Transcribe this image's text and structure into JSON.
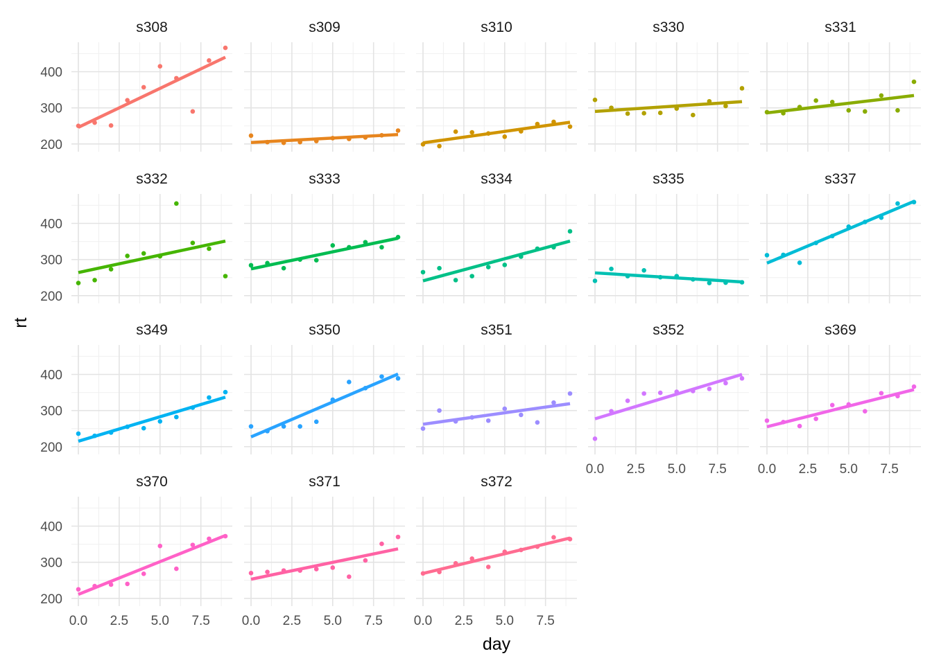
{
  "chart_data": {
    "type": "scatter",
    "title": "",
    "xlabel": "day",
    "ylabel": "rt",
    "xlim": [
      0,
      9
    ],
    "ylim": [
      190,
      470
    ],
    "xticks": [
      "0.0",
      "2.5",
      "5.0",
      "7.5"
    ],
    "yticks": [
      "200",
      "300",
      "400"
    ],
    "grid": true,
    "legend": "none",
    "trend_lines": "linear fit per panel",
    "facets": [
      {
        "name": "s308",
        "color": "#F8766D",
        "x": [
          0,
          1,
          2,
          3,
          4,
          5,
          6,
          7,
          8,
          9
        ],
        "y": [
          250,
          259,
          251,
          321,
          357,
          415,
          382,
          290,
          431,
          466
        ],
        "fit": [
          246,
          440
        ]
      },
      {
        "name": "s309",
        "color": "#E7851E",
        "x": [
          0,
          1,
          2,
          3,
          4,
          5,
          6,
          7,
          8,
          9
        ],
        "y": [
          223,
          205,
          203,
          205,
          208,
          216,
          214,
          218,
          224,
          237
        ],
        "fit": [
          204,
          226
        ]
      },
      {
        "name": "s310",
        "color": "#D09400",
        "x": [
          0,
          1,
          2,
          3,
          4,
          5,
          6,
          7,
          8,
          9
        ],
        "y": [
          199,
          194,
          234,
          232,
          229,
          220,
          235,
          255,
          261,
          248
        ],
        "fit": [
          203,
          260
        ]
      },
      {
        "name": "s330",
        "color": "#B2A100",
        "x": [
          0,
          1,
          2,
          3,
          4,
          5,
          6,
          7,
          8,
          9
        ],
        "y": [
          322,
          300,
          284,
          285,
          286,
          298,
          280,
          318,
          305,
          354
        ],
        "fit": [
          290,
          317
        ]
      },
      {
        "name": "s331",
        "color": "#89AC00",
        "x": [
          0,
          1,
          2,
          3,
          4,
          5,
          6,
          7,
          8,
          9
        ],
        "y": [
          288,
          285,
          302,
          320,
          316,
          293,
          290,
          334,
          293,
          372
        ],
        "fit": [
          286,
          334
        ]
      },
      {
        "name": "s332",
        "color": "#45B500",
        "x": [
          0,
          1,
          2,
          3,
          4,
          5,
          6,
          7,
          8,
          9
        ],
        "y": [
          235,
          243,
          273,
          310,
          317,
          309,
          455,
          346,
          330,
          254
        ],
        "fit": [
          264,
          351
        ]
      },
      {
        "name": "s333",
        "color": "#00BC51",
        "x": [
          0,
          1,
          2,
          3,
          4,
          5,
          6,
          7,
          8,
          9
        ],
        "y": [
          284,
          290,
          276,
          300,
          298,
          339,
          334,
          348,
          334,
          362
        ],
        "fit": [
          274,
          359
        ]
      },
      {
        "name": "s334",
        "color": "#00C087",
        "x": [
          0,
          1,
          2,
          3,
          4,
          5,
          6,
          7,
          8,
          9
        ],
        "y": [
          265,
          276,
          243,
          254,
          279,
          285,
          308,
          330,
          334,
          378
        ],
        "fit": [
          241,
          351
        ]
      },
      {
        "name": "s335",
        "color": "#00C0B2",
        "x": [
          0,
          1,
          2,
          3,
          4,
          5,
          6,
          7,
          8,
          9
        ],
        "y": [
          241,
          274,
          254,
          270,
          251,
          254,
          245,
          235,
          236,
          237
        ],
        "fit": [
          263,
          238
        ]
      },
      {
        "name": "s337",
        "color": "#00BCD6",
        "x": [
          0,
          1,
          2,
          3,
          4,
          5,
          6,
          7,
          8,
          9
        ],
        "y": [
          312,
          313,
          291,
          346,
          365,
          391,
          404,
          416,
          455,
          459
        ],
        "fit": [
          290,
          461
        ]
      },
      {
        "name": "s349",
        "color": "#00B3F2",
        "x": [
          0,
          1,
          2,
          3,
          4,
          5,
          6,
          7,
          8,
          9
        ],
        "y": [
          236,
          230,
          239,
          255,
          251,
          270,
          282,
          308,
          336,
          351
        ],
        "fit": [
          215,
          337
        ]
      },
      {
        "name": "s350",
        "color": "#29A3FF",
        "x": [
          0,
          1,
          2,
          3,
          4,
          5,
          6,
          7,
          8,
          9
        ],
        "y": [
          256,
          243,
          256,
          256,
          269,
          330,
          379,
          362,
          394,
          389
        ],
        "fit": [
          227,
          401
        ]
      },
      {
        "name": "s351",
        "color": "#9C8DFF",
        "x": [
          0,
          1,
          2,
          3,
          4,
          5,
          6,
          7,
          8,
          9
        ],
        "y": [
          250,
          300,
          270,
          281,
          272,
          305,
          288,
          267,
          322,
          347
        ],
        "fit": [
          262,
          319
        ]
      },
      {
        "name": "s352",
        "color": "#D277FF",
        "x": [
          0,
          1,
          2,
          3,
          4,
          5,
          6,
          7,
          8,
          9
        ],
        "y": [
          222,
          298,
          327,
          347,
          349,
          352,
          354,
          360,
          376,
          389
        ],
        "fit": [
          277,
          400
        ]
      },
      {
        "name": "s369",
        "color": "#F166E8",
        "x": [
          0,
          1,
          2,
          3,
          4,
          5,
          6,
          7,
          8,
          9
        ],
        "y": [
          272,
          268,
          257,
          277,
          315,
          317,
          298,
          348,
          340,
          366
        ],
        "fit": [
          255,
          358
        ]
      },
      {
        "name": "s370",
        "color": "#FF61C7",
        "x": [
          0,
          1,
          2,
          3,
          4,
          5,
          6,
          7,
          8,
          9
        ],
        "y": [
          225,
          234,
          238,
          240,
          268,
          345,
          282,
          348,
          365,
          372
        ],
        "fit": [
          211,
          374
        ]
      },
      {
        "name": "s371",
        "color": "#FF62A4",
        "x": [
          0,
          1,
          2,
          3,
          4,
          5,
          6,
          7,
          8,
          9
        ],
        "y": [
          270,
          273,
          277,
          277,
          281,
          285,
          260,
          305,
          351,
          370
        ],
        "fit": [
          253,
          337
        ]
      },
      {
        "name": "s372",
        "color": "#FF6C91",
        "x": [
          0,
          1,
          2,
          3,
          4,
          5,
          6,
          7,
          8,
          9
        ],
        "y": [
          269,
          273,
          297,
          310,
          287,
          329,
          334,
          343,
          369,
          364
        ],
        "fit": [
          269,
          367
        ]
      }
    ]
  }
}
